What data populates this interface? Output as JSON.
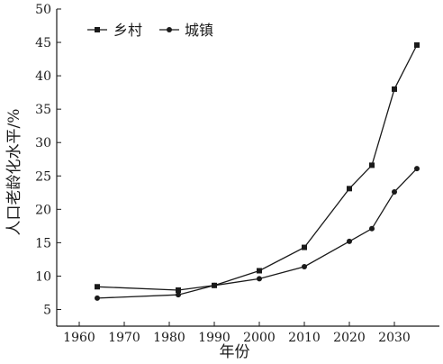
{
  "chart_data": {
    "type": "line",
    "xlabel": "年份",
    "ylabel": "人口老龄化水平/%",
    "xlim": [
      1955,
      2040
    ],
    "ylim": [
      2.5,
      50
    ],
    "xticks": [
      1960,
      1970,
      1980,
      1990,
      2000,
      2010,
      2020,
      2030
    ],
    "yticks": [
      5,
      10,
      15,
      20,
      25,
      30,
      35,
      40,
      45,
      50
    ],
    "grid": false,
    "legend_position": "top-left",
    "series": [
      {
        "name": "乡村",
        "marker": "square",
        "x": [
          1964,
          1982,
          1990,
          2000,
          2010,
          2020,
          2025,
          2030,
          2035
        ],
        "y": [
          8.4,
          7.9,
          8.6,
          10.8,
          14.3,
          23.1,
          26.6,
          38.0,
          44.6
        ]
      },
      {
        "name": "城镇",
        "marker": "circle",
        "x": [
          1964,
          1982,
          1990,
          2000,
          2010,
          2020,
          2025,
          2030,
          2035
        ],
        "y": [
          6.7,
          7.2,
          8.6,
          9.6,
          11.4,
          15.2,
          17.1,
          22.6,
          26.1
        ]
      }
    ]
  }
}
